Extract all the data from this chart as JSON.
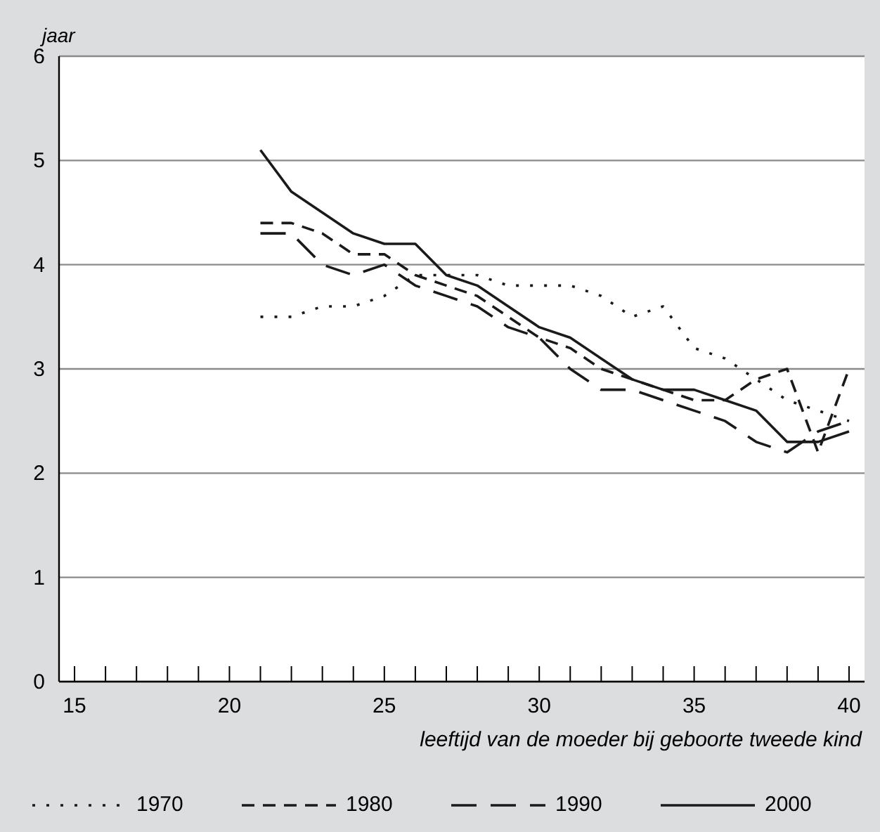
{
  "chart_data": {
    "type": "line",
    "ylabel": "jaar",
    "xlabel": "leeftijd van de moeder bij geboorte tweede kind",
    "x": [
      21,
      22,
      23,
      24,
      25,
      26,
      27,
      28,
      29,
      30,
      31,
      32,
      33,
      34,
      35,
      36,
      37,
      38,
      39,
      40
    ],
    "series": [
      {
        "name": "1970",
        "color": "#1a1a1a",
        "line_style": "dotted",
        "values": [
          3.5,
          3.5,
          3.6,
          3.6,
          3.7,
          3.9,
          3.9,
          3.9,
          3.8,
          3.8,
          3.8,
          3.7,
          3.5,
          3.6,
          3.2,
          3.1,
          2.9,
          2.7,
          2.6,
          2.5
        ]
      },
      {
        "name": "1980",
        "color": "#1a1a1a",
        "line_style": "dashed",
        "values": [
          4.4,
          4.4,
          4.3,
          4.1,
          4.1,
          3.9,
          3.8,
          3.7,
          3.5,
          3.3,
          3.2,
          3.0,
          2.9,
          2.8,
          2.7,
          2.7,
          2.9,
          3.0,
          2.2,
          3.0
        ]
      },
      {
        "name": "1990",
        "color": "#1a1a1a",
        "line_style": "longdash",
        "values": [
          4.3,
          4.3,
          4.0,
          3.9,
          4.0,
          3.8,
          3.7,
          3.6,
          3.4,
          3.3,
          3.0,
          2.8,
          2.8,
          2.7,
          2.6,
          2.5,
          2.3,
          2.2,
          2.4,
          2.5
        ]
      },
      {
        "name": "2000",
        "color": "#1a1a1a",
        "line_style": "solid",
        "values": [
          5.1,
          4.7,
          4.5,
          4.3,
          4.2,
          4.2,
          3.9,
          3.8,
          3.6,
          3.4,
          3.3,
          3.1,
          2.9,
          2.8,
          2.8,
          2.7,
          2.6,
          2.3,
          2.3,
          2.4
        ]
      }
    ],
    "xlim": [
      14.5,
      40.5
    ],
    "xticks": [
      15,
      {
        "value": 16,
        "label": null
      },
      {
        "value": 17,
        "label": null
      },
      {
        "value": 18,
        "label": null
      },
      {
        "value": 19,
        "label": null
      },
      20,
      {
        "value": 21,
        "label": null
      },
      {
        "value": 22,
        "label": null
      },
      {
        "value": 23,
        "label": null
      },
      {
        "value": 24,
        "label": null
      },
      25,
      {
        "value": 26,
        "label": null
      },
      {
        "value": 27,
        "label": null
      },
      {
        "value": 28,
        "label": null
      },
      {
        "value": 29,
        "label": null
      },
      30,
      {
        "value": 31,
        "label": null
      },
      {
        "value": 32,
        "label": null
      },
      {
        "value": 33,
        "label": null
      },
      {
        "value": 34,
        "label": null
      },
      35,
      {
        "value": 36,
        "label": null
      },
      {
        "value": 37,
        "label": null
      },
      {
        "value": 38,
        "label": null
      },
      {
        "value": 39,
        "label": null
      },
      40
    ],
    "ylim": [
      0,
      6
    ],
    "yticks": [
      0,
      1,
      2,
      3,
      4,
      5,
      6
    ],
    "grid": "y",
    "legend": "bottom"
  }
}
